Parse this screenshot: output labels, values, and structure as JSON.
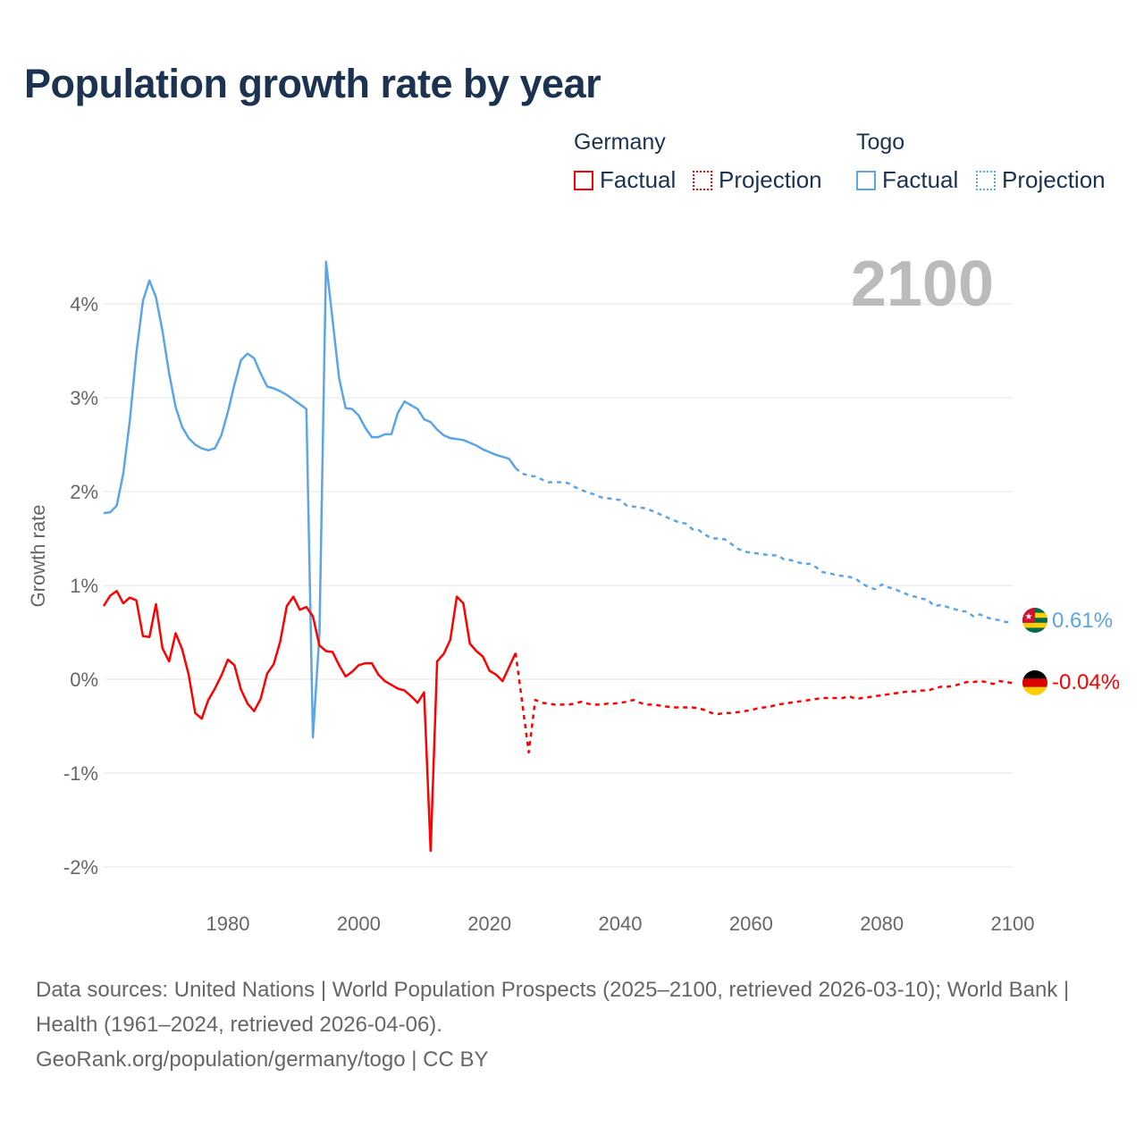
{
  "title": "Population growth rate by year",
  "legend": {
    "groups": [
      {
        "name": "Germany",
        "color": "#ff0000",
        "items": [
          "Factual",
          "Projection"
        ]
      },
      {
        "name": "Togo",
        "color": "#5aa5e6",
        "items": [
          "Factual",
          "Projection"
        ]
      }
    ]
  },
  "year_label": "2100",
  "end_labels": {
    "togo": "0.61%",
    "germany": "-0.04%"
  },
  "footer": {
    "sources": "Data sources: United Nations | World Population Prospects (2025–2100, retrieved 2026-03-10); World Bank | Health (1961–2024, retrieved 2026-04-06).",
    "credit": "GeoRank.org/population/germany/togo | CC BY"
  },
  "chart_data": {
    "type": "line",
    "title": "Population growth rate by year",
    "xlabel": "",
    "ylabel": "Growth rate",
    "xlim": [
      1961,
      2100
    ],
    "ylim": [
      -2.2,
      4.6
    ],
    "xticks": [
      1980,
      2000,
      2020,
      2040,
      2060,
      2080,
      2100
    ],
    "xtick_labels": [
      "1980",
      "2000",
      "2020",
      "2040",
      "2060",
      "2080",
      "2100"
    ],
    "yticks": [
      -2,
      -1,
      0,
      1,
      2,
      3,
      4
    ],
    "ytick_labels": [
      "-2%",
      "-1%",
      "0%",
      "1%",
      "2%",
      "3%",
      "4%"
    ],
    "grid": true,
    "legend_position": "top-right",
    "series": [
      {
        "name": "Togo Factual",
        "country": "Togo",
        "kind": "factual",
        "color": "#5aa5e6",
        "x_start": 1961,
        "values": [
          1.77,
          1.78,
          1.85,
          2.19,
          2.76,
          3.48,
          4.03,
          4.25,
          4.07,
          3.71,
          3.26,
          2.9,
          2.69,
          2.57,
          2.5,
          2.46,
          2.44,
          2.46,
          2.6,
          2.85,
          3.14,
          3.4,
          3.47,
          3.42,
          3.26,
          3.12,
          3.1,
          3.07,
          3.03,
          2.98,
          2.93,
          2.88,
          -0.62,
          0.48,
          4.45,
          3.83,
          3.21,
          2.89,
          2.88,
          2.81,
          2.68,
          2.58,
          2.58,
          2.61,
          2.61,
          2.84,
          2.96,
          2.92,
          2.88,
          2.77,
          2.74,
          2.66,
          2.6,
          2.57,
          2.56,
          2.55,
          2.52,
          2.49,
          2.45,
          2.42,
          2.39,
          2.37,
          2.35,
          2.25
        ]
      },
      {
        "name": "Togo Projection",
        "country": "Togo",
        "kind": "projection",
        "color": "#5aa5e6",
        "x_start": 2024,
        "values": [
          2.25,
          2.19,
          2.17,
          2.16,
          2.13,
          2.1,
          2.1,
          2.1,
          2.09,
          2.05,
          2.02,
          1.99,
          1.97,
          1.94,
          1.93,
          1.92,
          1.91,
          1.85,
          1.84,
          1.83,
          1.82,
          1.79,
          1.76,
          1.73,
          1.7,
          1.67,
          1.66,
          1.6,
          1.59,
          1.54,
          1.5,
          1.5,
          1.49,
          1.44,
          1.39,
          1.36,
          1.35,
          1.34,
          1.33,
          1.32,
          1.32,
          1.28,
          1.27,
          1.25,
          1.23,
          1.23,
          1.19,
          1.14,
          1.13,
          1.11,
          1.1,
          1.09,
          1.07,
          1.02,
          0.98,
          0.96,
          1.01,
          0.98,
          0.96,
          0.93,
          0.9,
          0.88,
          0.86,
          0.85,
          0.78,
          0.79,
          0.77,
          0.75,
          0.73,
          0.72,
          0.67,
          0.69,
          0.66,
          0.64,
          0.63,
          0.61,
          0.61
        ]
      },
      {
        "name": "Germany Factual",
        "country": "Germany",
        "kind": "factual",
        "color": "#ff0000",
        "x_start": 1961,
        "values": [
          0.78,
          0.89,
          0.94,
          0.81,
          0.87,
          0.84,
          0.46,
          0.45,
          0.8,
          0.33,
          0.19,
          0.49,
          0.32,
          0.05,
          -0.36,
          -0.42,
          -0.22,
          -0.1,
          0.04,
          0.21,
          0.15,
          -0.11,
          -0.26,
          -0.34,
          -0.21,
          0.06,
          0.16,
          0.4,
          0.78,
          0.88,
          0.74,
          0.77,
          0.67,
          0.36,
          0.3,
          0.29,
          0.15,
          0.03,
          0.08,
          0.15,
          0.17,
          0.17,
          0.05,
          -0.02,
          -0.06,
          -0.1,
          -0.12,
          -0.18,
          -0.25,
          -0.14,
          -1.83,
          0.19,
          0.27,
          0.42,
          0.88,
          0.81,
          0.38,
          0.3,
          0.24,
          0.09,
          0.05,
          -0.02,
          0.13,
          0.28
        ]
      },
      {
        "name": "Germany Projection",
        "country": "Germany",
        "kind": "projection",
        "color": "#ff0000",
        "x_start": 2024,
        "values": [
          0.28,
          -0.25,
          -0.78,
          -0.22,
          -0.25,
          -0.26,
          -0.27,
          -0.27,
          -0.27,
          -0.26,
          -0.24,
          -0.26,
          -0.27,
          -0.27,
          -0.26,
          -0.26,
          -0.25,
          -0.24,
          -0.22,
          -0.25,
          -0.27,
          -0.27,
          -0.28,
          -0.29,
          -0.3,
          -0.3,
          -0.3,
          -0.3,
          -0.31,
          -0.33,
          -0.36,
          -0.37,
          -0.36,
          -0.36,
          -0.35,
          -0.34,
          -0.33,
          -0.31,
          -0.3,
          -0.29,
          -0.27,
          -0.26,
          -0.25,
          -0.24,
          -0.23,
          -0.22,
          -0.21,
          -0.2,
          -0.2,
          -0.2,
          -0.2,
          -0.18,
          -0.21,
          -0.2,
          -0.19,
          -0.18,
          -0.17,
          -0.16,
          -0.15,
          -0.14,
          -0.13,
          -0.13,
          -0.12,
          -0.12,
          -0.1,
          -0.08,
          -0.08,
          -0.07,
          -0.05,
          -0.03,
          -0.03,
          -0.02,
          -0.03,
          -0.05,
          -0.02,
          -0.03,
          -0.04
        ]
      }
    ]
  }
}
